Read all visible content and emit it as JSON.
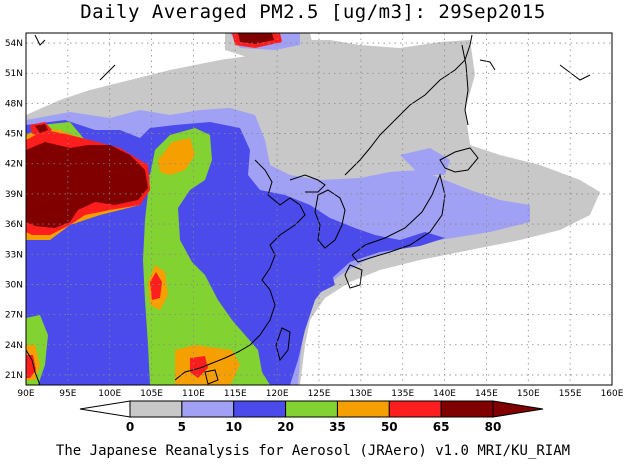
{
  "title": "Daily Averaged PM2.5 [ug/m3]: 29Sep2015",
  "credit": "The Japanese Reanalysis for Aerosol (JRAero) v1.0 MRI/KU_RIAM",
  "map": {
    "lon_range": [
      90,
      160
    ],
    "lat_range": [
      20,
      55
    ],
    "lat_ticks": [
      "21N",
      "24N",
      "27N",
      "30N",
      "33N",
      "36N",
      "39N",
      "42N",
      "45N",
      "48N",
      "51N",
      "54N"
    ],
    "lon_ticks": [
      "90E",
      "95E",
      "100E",
      "105E",
      "110E",
      "115E",
      "120E",
      "125E",
      "130E",
      "135E",
      "140E",
      "145E",
      "150E",
      "155E",
      "160E"
    ],
    "grid": true
  },
  "colorbar": {
    "labels": [
      "0",
      "5",
      "10",
      "20",
      "35",
      "50",
      "65",
      "80"
    ],
    "colors": [
      "#ffffff",
      "#c8c8c8",
      "#a0a0f5",
      "#4b4bec",
      "#82d232",
      "#f5a000",
      "#ff1e1e",
      "#800000"
    ]
  }
}
